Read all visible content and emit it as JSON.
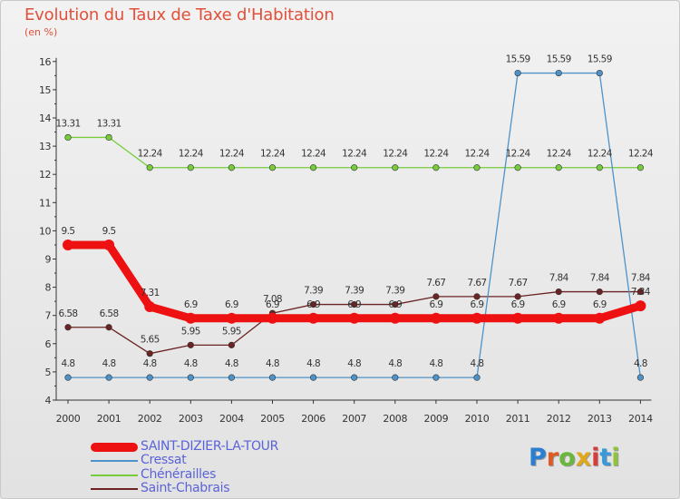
{
  "header": {
    "title": "Evolution du Taux de Taxe d'Habitation",
    "subtitle": "(en %)"
  },
  "chart_data": {
    "type": "line",
    "x": [
      "2000",
      "2001",
      "2002",
      "2003",
      "2004",
      "2005",
      "2006",
      "2007",
      "2008",
      "2009",
      "2010",
      "2011",
      "2012",
      "2013",
      "2014"
    ],
    "ylim": [
      4,
      16
    ],
    "yticks": [
      "4",
      "5",
      "6",
      "7",
      "8",
      "9",
      "10",
      "11",
      "12",
      "13",
      "14",
      "15",
      "16"
    ],
    "grid": false,
    "legend_position": "bottom-left",
    "series": [
      {
        "name": "SAINT-DIZIER-LA-TOUR",
        "color": "#ee1111",
        "values": [
          9.5,
          9.5,
          7.31,
          6.9,
          6.9,
          6.9,
          6.9,
          6.9,
          6.9,
          6.9,
          6.9,
          6.9,
          6.9,
          6.9,
          7.34
        ],
        "labels": [
          "9.5",
          "9.5",
          "7.31",
          "6.9",
          "6.9",
          "6.9",
          "6.9",
          "6.9",
          "6.9",
          "6.9",
          "6.9",
          "6.9",
          "6.9",
          "6.9",
          "7.34"
        ]
      },
      {
        "name": "Cressat",
        "color": "#4d92c9",
        "values": [
          4.8,
          4.8,
          4.8,
          4.8,
          4.8,
          4.8,
          4.8,
          4.8,
          4.8,
          4.8,
          4.8,
          15.59,
          15.59,
          15.59,
          4.8
        ],
        "labels": [
          "4.8",
          "4.8",
          "4.8",
          "4.8",
          "4.8",
          "4.8",
          "4.8",
          "4.8",
          "4.8",
          "4.8",
          "4.8",
          "15.59",
          "15.59",
          "15.59",
          "4.8"
        ]
      },
      {
        "name": "Chénérailles",
        "color": "#77cc3b",
        "values": [
          13.31,
          13.31,
          12.24,
          12.24,
          12.24,
          12.24,
          12.24,
          12.24,
          12.24,
          12.24,
          12.24,
          12.24,
          12.24,
          12.24,
          12.24
        ],
        "labels": [
          "13.31",
          "13.31",
          "12.24",
          "12.24",
          "12.24",
          "12.24",
          "12.24",
          "12.24",
          "12.24",
          "12.24",
          "12.24",
          "12.24",
          "12.24",
          "12.24",
          "12.24"
        ]
      },
      {
        "name": "Saint-Chabrais",
        "color": "#6b2323",
        "values": [
          6.58,
          6.58,
          5.65,
          5.95,
          5.95,
          7.08,
          7.39,
          7.39,
          7.39,
          7.67,
          7.67,
          7.67,
          7.84,
          7.84,
          7.84
        ],
        "labels": [
          "6.58",
          "6.58",
          "5.65",
          "5.95",
          "5.95",
          "7.08",
          "7.39",
          "7.39",
          "7.39",
          "7.67",
          "7.67",
          "7.67",
          "7.84",
          "7.84",
          "7.84"
        ]
      }
    ]
  },
  "logo": {
    "letters": [
      "P",
      "r",
      "o",
      "x",
      "i",
      "t",
      "i"
    ],
    "colors": [
      "#2b7fd1",
      "#e05a24",
      "#69b83a",
      "#e0a81c",
      "#d93a3a",
      "#3a9ad9",
      "#8fc43a"
    ]
  }
}
